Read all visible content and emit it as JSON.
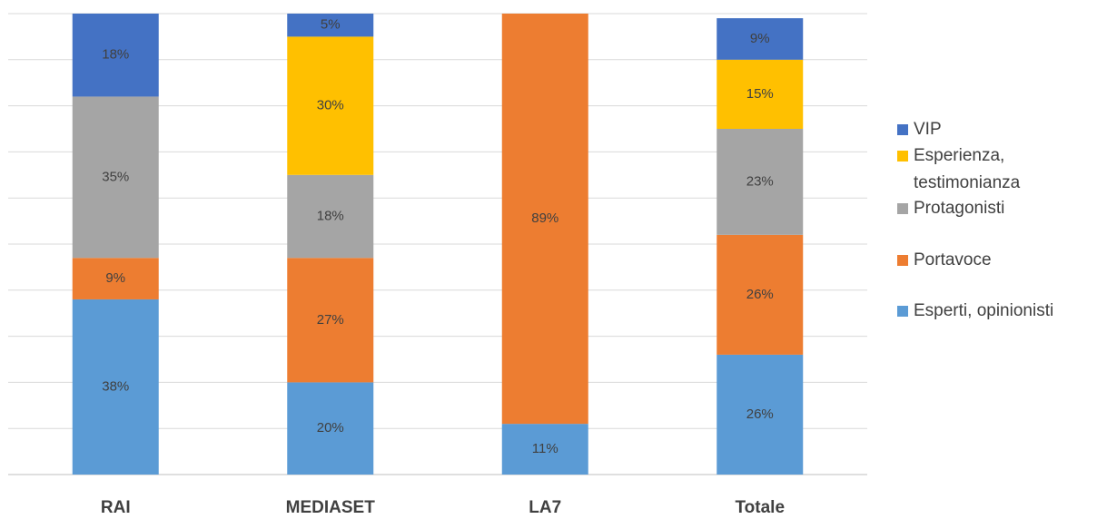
{
  "chart_data": {
    "type": "stacked_bar",
    "categories": [
      "RAI",
      "MEDIASET",
      "LA7",
      "Totale"
    ],
    "series": [
      {
        "name": "Esperti, opinionisti",
        "color": "#5b9bd5",
        "values": [
          38,
          20,
          11,
          26
        ],
        "value_labels": [
          "38%",
          "20%",
          "11%",
          "26%"
        ]
      },
      {
        "name": "Portavoce",
        "color": "#ed7d31",
        "values": [
          9,
          27,
          89,
          26
        ],
        "value_labels": [
          "9%",
          "27%",
          "89%",
          "26%"
        ]
      },
      {
        "name": "Protagonisti",
        "color": "#a5a5a5",
        "values": [
          35,
          18,
          null,
          23
        ],
        "value_labels": [
          "35%",
          "18%",
          null,
          "23%"
        ]
      },
      {
        "name": "Esperienza, testimonianza",
        "color": "#ffc000",
        "values": [
          null,
          30,
          null,
          15
        ],
        "value_labels": [
          null,
          "30%",
          null,
          "15%"
        ]
      },
      {
        "name": "VIP",
        "color": "#4472c4",
        "values": [
          18,
          5,
          null,
          9
        ],
        "value_labels": [
          "18%",
          "5%",
          null,
          "9%"
        ]
      }
    ],
    "ylim": [
      0,
      100
    ],
    "yticks": [
      0,
      10,
      20,
      30,
      40,
      50,
      60,
      70,
      80,
      90,
      100
    ],
    "grid": true,
    "legend": "right"
  }
}
